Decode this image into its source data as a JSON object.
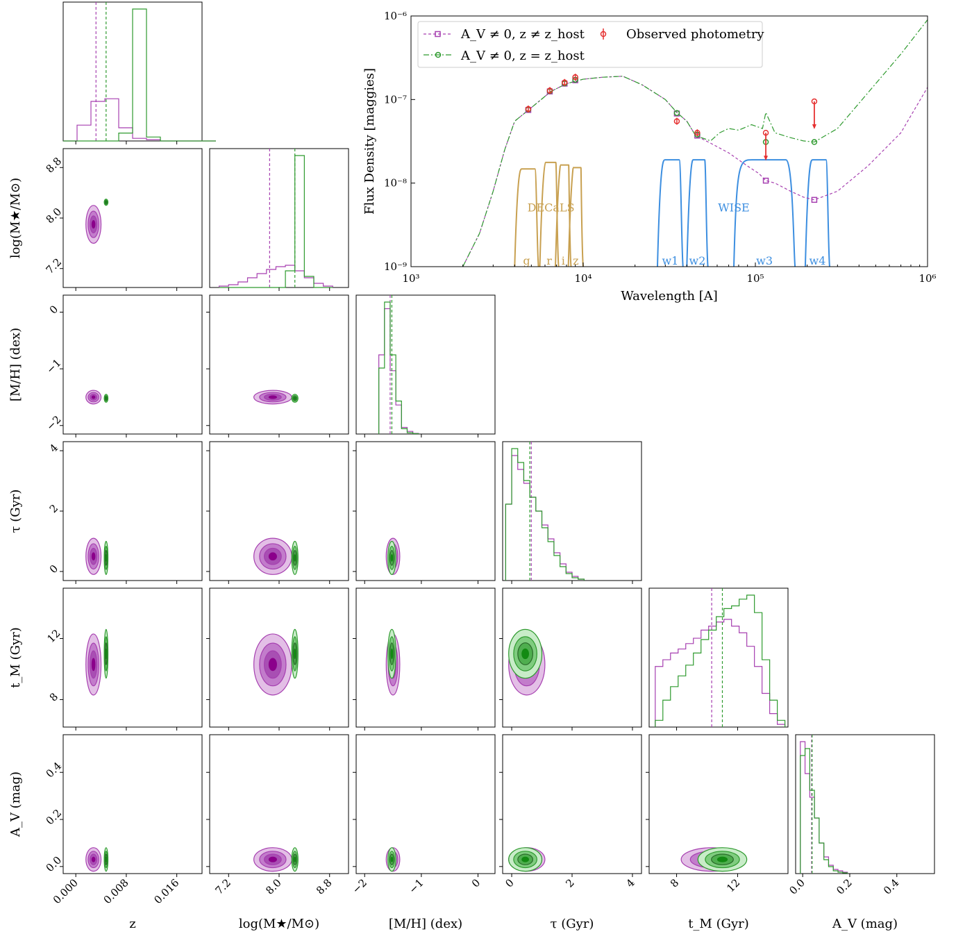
{
  "colors": {
    "purple": "#a63fb0",
    "purple_dark": "#8b008b",
    "purple_light": "#e3bfe6",
    "purple_mid": "#c27ccb",
    "green": "#2e9a2e",
    "green_dark": "#138a13",
    "green_light": "#c8ecc8",
    "green_mid": "#7fcc7f",
    "red": "#e53030",
    "gray": "#777777",
    "decals": "#c8a050",
    "wise": "#3c8ee0"
  },
  "chart_data": [
    {
      "type": "line",
      "id": "sed",
      "xlabel": "Wavelength [A]",
      "ylabel": "Flux Density [maggies]",
      "xscale": "log",
      "yscale": "log",
      "xlim": [
        1000,
        1000000
      ],
      "ylim": [
        1e-09,
        1e-06
      ],
      "x_tick_labels": [
        "10³",
        "10⁴",
        "10⁵",
        "10⁶"
      ],
      "x_tick_values": [
        1000,
        10000,
        100000,
        1000000
      ],
      "y_tick_labels": [
        "10⁻⁹",
        "10⁻⁸",
        "10⁻⁷",
        "10⁻⁶"
      ],
      "y_tick_values": [
        1e-09,
        1e-08,
        1e-07,
        1e-06
      ],
      "legend": {
        "placement": "top-left",
        "entries": [
          {
            "label": "A_V ≠ 0, z ≠ z_host",
            "color": "purple",
            "style": "dashed-square"
          },
          {
            "label": "A_V ≠ 0, z = z_host",
            "color": "green",
            "style": "dashdot-circle"
          },
          {
            "label": "Observed photometry",
            "color": "red",
            "style": "errorbar"
          }
        ]
      },
      "series": [
        {
          "name": "A_V ≠ 0, z ≠ z_host",
          "color": "purple",
          "x": [
            2000,
            2500,
            3000,
            3500,
            4000,
            5000,
            6500,
            8000,
            10000,
            13000,
            17000,
            22000,
            30000,
            35000,
            40000,
            45000,
            55000,
            70000,
            90000,
            105000,
            115000,
            130000,
            160000,
            190000,
            220000,
            300000,
            450000,
            700000,
            1000000
          ],
          "y": [
            1e-09,
            2.5e-09,
            8e-09,
            2.5e-08,
            5.5e-08,
            8e-08,
            1.25e-07,
            1.55e-07,
            1.75e-07,
            1.85e-07,
            1.9e-07,
            1.5e-07,
            1e-07,
            7e-08,
            5.5e-08,
            3.7e-08,
            3e-08,
            2.3e-08,
            1.6e-08,
            1.3e-08,
            1.07e-08,
            1e-08,
            8e-09,
            6.8e-09,
            6.3e-09,
            8e-09,
            1.6e-08,
            4e-08,
            1.4e-07
          ]
        },
        {
          "name": "A_V ≠ 0, z = z_host",
          "color": "green",
          "x": [
            2000,
            2500,
            3000,
            3500,
            4000,
            5000,
            6500,
            8000,
            10000,
            13000,
            17000,
            22000,
            30000,
            35000,
            40000,
            45000,
            55000,
            62000,
            70000,
            80000,
            95000,
            110000,
            115000,
            130000,
            160000,
            190000,
            220000,
            300000,
            450000,
            700000,
            1000000
          ],
          "y": [
            1e-09,
            2.5e-09,
            8e-09,
            2.5e-08,
            5.5e-08,
            8e-08,
            1.25e-07,
            1.55e-07,
            1.75e-07,
            1.85e-07,
            1.9e-07,
            1.5e-07,
            1e-07,
            7e-08,
            5.5e-08,
            3.7e-08,
            3.2e-08,
            4e-08,
            4.5e-08,
            4.3e-08,
            5e-08,
            4.5e-08,
            7e-08,
            4e-08,
            3.5e-08,
            3.2e-08,
            3.1e-08,
            4.5e-08,
            1.2e-07,
            3.5e-07,
            9e-07
          ]
        }
      ],
      "model_points_purple": {
        "x": [
          4800,
          6400,
          7800,
          9000,
          35000,
          46000,
          115000,
          220000
        ],
        "y": [
          7.5e-08,
          1.25e-07,
          1.55e-07,
          1.7e-07,
          6.8e-08,
          3.7e-08,
          1.07e-08,
          6.3e-09
        ]
      },
      "model_points_green": {
        "x": [
          4800,
          6400,
          7800,
          9000,
          35000,
          46000,
          115000,
          220000
        ],
        "y": [
          7.6e-08,
          1.26e-07,
          1.56e-07,
          1.72e-07,
          6.9e-08,
          3.8e-08,
          3.1e-08,
          3.1e-08
        ]
      },
      "observed": {
        "x": [
          4800,
          6400,
          7800,
          9000,
          35000,
          46000,
          115000,
          220000
        ],
        "y": [
          7.7e-08,
          1.28e-07,
          1.6e-07,
          1.85e-07,
          5.5e-08,
          4e-08,
          4e-08,
          9.5e-08
        ],
        "upper_limit": [
          false,
          false,
          false,
          false,
          false,
          false,
          true,
          true
        ]
      },
      "bands": {
        "decals_label": "DECaLS",
        "wise_label": "WISE",
        "filters": [
          {
            "name": "g",
            "group": "decals",
            "lo": 4000,
            "hi": 5500,
            "peak": 0.75
          },
          {
            "name": "r",
            "group": "decals",
            "lo": 5600,
            "hi": 7200,
            "peak": 0.8
          },
          {
            "name": "i",
            "group": "decals",
            "lo": 6900,
            "hi": 8500,
            "peak": 0.78
          },
          {
            "name": "z",
            "group": "decals",
            "lo": 8200,
            "hi": 10000,
            "peak": 0.76
          },
          {
            "name": "w1",
            "group": "wise",
            "lo": 27000,
            "hi": 38000,
            "peak": 0.82
          },
          {
            "name": "w2",
            "group": "wise",
            "lo": 40000,
            "hi": 53000,
            "peak": 0.82
          },
          {
            "name": "w3",
            "group": "wise",
            "lo": 75000,
            "hi": 170000,
            "peak": 0.82
          },
          {
            "name": "w4",
            "group": "wise",
            "lo": 195000,
            "hi": 270000,
            "peak": 0.82
          }
        ]
      }
    },
    {
      "type": "corner",
      "id": "corner",
      "parameters": [
        {
          "label": "z",
          "range": [
            -0.002,
            0.02
          ],
          "ticks": [
            0.0,
            0.008,
            0.016
          ],
          "tick_labels": [
            "0.000",
            "0.008",
            "0.016"
          ]
        },
        {
          "label": "log(M★/M⊙)",
          "range": [
            6.9,
            9.1
          ],
          "ticks": [
            7.2,
            8.0,
            8.8
          ],
          "tick_labels": [
            "7.2",
            "8.0",
            "8.8"
          ]
        },
        {
          "label": "[M/H] (dex)",
          "range": [
            -2.15,
            0.3
          ],
          "ticks": [
            -2,
            -1,
            0
          ],
          "tick_labels": [
            "−2",
            "−1",
            "0"
          ]
        },
        {
          "label": "τ (Gyr)",
          "range": [
            -0.3,
            4.3
          ],
          "ticks": [
            0,
            2,
            4
          ],
          "tick_labels": [
            "0",
            "2",
            "4"
          ]
        },
        {
          "label": "t_M (Gyr)",
          "range": [
            6.2,
            15.3
          ],
          "ticks": [
            8,
            12
          ],
          "tick_labels": [
            "8",
            "12"
          ]
        },
        {
          "label": "A_V (mag)",
          "range": [
            -0.03,
            0.56
          ],
          "ticks": [
            0.0,
            0.2,
            0.4
          ],
          "tick_labels": [
            "0.0",
            "0.2",
            "0.4"
          ]
        }
      ],
      "marginals": [
        {
          "purple": [
            0,
            0.12,
            0.3,
            0.32,
            0.1,
            0.02,
            0.01,
            0,
            0,
            0,
            0
          ],
          "green": [
            0,
            0,
            0,
            0,
            0.06,
            1.0,
            0.03,
            0,
            0,
            0,
            0
          ],
          "purple_median": 0.0032,
          "green_median": 0.0048,
          "bins": [
            -0.002,
            0.0022
          ]
        },
        {
          "purple": [
            0.01,
            0.02,
            0.04,
            0.07,
            0.1,
            0.13,
            0.15,
            0.16,
            0.12,
            0.07,
            0.03,
            0.01
          ],
          "green": [
            0,
            0,
            0,
            0,
            0,
            0,
            0,
            0.12,
            0.95,
            0.08,
            0,
            0
          ],
          "purple_median": 7.85,
          "green_median": 8.25,
          "bins": [
            7.05,
            0.15
          ]
        },
        {
          "purple": [
            0.6,
            0.95,
            0.48,
            0.22,
            0.05,
            0.02,
            0.005
          ],
          "green": [
            0.5,
            1.0,
            0.6,
            0.25,
            0.04,
            0.01,
            0.003
          ],
          "purple_median": -1.55,
          "green_median": -1.52,
          "bins": [
            -1.75,
            0.1
          ]
        },
        {
          "purple": [
            0.55,
            0.9,
            0.8,
            0.7,
            0.6,
            0.5,
            0.4,
            0.3,
            0.2,
            0.12,
            0.06,
            0.03,
            0.01
          ],
          "green": [
            0.55,
            0.95,
            0.85,
            0.72,
            0.6,
            0.5,
            0.38,
            0.28,
            0.18,
            0.1,
            0.05,
            0.02,
            0.01
          ],
          "purple_median": 0.65,
          "green_median": 0.6,
          "bins": [
            -0.2,
            0.2
          ]
        },
        {
          "purple": [
            0.45,
            0.5,
            0.55,
            0.58,
            0.62,
            0.66,
            0.72,
            0.75,
            0.78,
            0.8,
            0.75,
            0.7,
            0.6,
            0.45,
            0.25,
            0.1,
            0.02
          ],
          "green": [
            0.05,
            0.2,
            0.3,
            0.38,
            0.46,
            0.55,
            0.65,
            0.72,
            0.82,
            0.88,
            0.9,
            0.95,
            0.98,
            0.85,
            0.5,
            0.2,
            0.05
          ],
          "purple_median": 10.3,
          "green_median": 11.0,
          "bins": [
            6.6,
            0.5
          ]
        },
        {
          "purple": [
            0.95,
            0.72,
            0.55,
            0.4,
            0.22,
            0.12,
            0.06,
            0.03,
            0.02,
            0.01
          ],
          "green": [
            0.85,
            0.9,
            0.6,
            0.4,
            0.22,
            0.1,
            0.05,
            0.02,
            0.01,
            0.005
          ],
          "purple_median": 0.038,
          "green_median": 0.04,
          "bins": [
            -0.01,
            0.02
          ]
        }
      ],
      "joint_centers": {
        "purple": [
          0.0028,
          7.9,
          -1.5,
          0.5,
          10.3,
          0.03
        ],
        "green": [
          0.0048,
          8.25,
          -1.52,
          0.45,
          11.0,
          0.03
        ]
      },
      "joint_widths": {
        "purple": [
          0.0012,
          0.3,
          0.12,
          0.6,
          2.0,
          0.05
        ],
        "green": [
          0.0003,
          0.05,
          0.07,
          0.55,
          1.6,
          0.05
        ]
      }
    }
  ]
}
